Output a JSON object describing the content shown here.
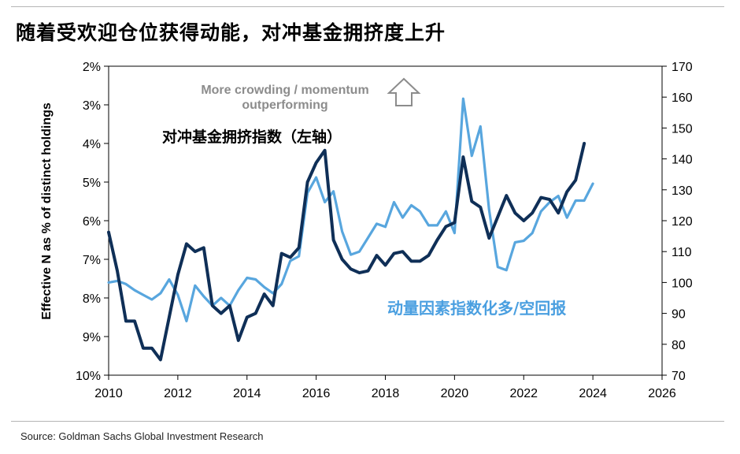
{
  "title": "随着受欢迎仓位获得动能，对冲基金拥挤度上升",
  "source": "Source: Goldman Sachs Global Investment Research",
  "colors": {
    "dark_series": "#0f2f57",
    "light_series": "#58a6de",
    "arrow": "#8c8c8c"
  },
  "chart_data": {
    "type": "line",
    "xlim": [
      2010,
      2026
    ],
    "x_ticks": [
      "2010",
      "2012",
      "2014",
      "2016",
      "2018",
      "2020",
      "2022",
      "2024",
      "2026"
    ],
    "y_left": {
      "label": "Effective N as % of distinct holdings",
      "ylim": [
        2,
        10
      ],
      "inverted": true,
      "ticks": [
        "2%",
        "3%",
        "4%",
        "5%",
        "6%",
        "7%",
        "8%",
        "9%",
        "10%"
      ]
    },
    "y_right": {
      "ylim": [
        70,
        170
      ],
      "ticks": [
        "70",
        "80",
        "90",
        "100",
        "110",
        "120",
        "130",
        "140",
        "150",
        "160",
        "170"
      ]
    },
    "annotations": {
      "top_note_line1": "More crowding / momentum",
      "top_note_line2": "outperforming",
      "left_series_label": "对冲基金拥挤指数（左轴）",
      "right_series_label": "动量因素指数化多/空回报"
    },
    "series": [
      {
        "axis": "left",
        "color": "#0f2f57",
        "points": [
          [
            2010.0,
            6.3
          ],
          [
            2010.25,
            7.3
          ],
          [
            2010.5,
            8.6
          ],
          [
            2010.75,
            8.6
          ],
          [
            2011.0,
            9.3
          ],
          [
            2011.25,
            9.3
          ],
          [
            2011.5,
            9.6
          ],
          [
            2011.75,
            8.5
          ],
          [
            2012.0,
            7.4
          ],
          [
            2012.25,
            6.6
          ],
          [
            2012.5,
            6.8
          ],
          [
            2012.75,
            6.7
          ],
          [
            2013.0,
            8.2
          ],
          [
            2013.25,
            8.4
          ],
          [
            2013.5,
            8.2
          ],
          [
            2013.75,
            9.1
          ],
          [
            2014.0,
            8.5
          ],
          [
            2014.25,
            8.4
          ],
          [
            2014.5,
            7.9
          ],
          [
            2014.75,
            8.2
          ],
          [
            2015.0,
            6.85
          ],
          [
            2015.25,
            6.95
          ],
          [
            2015.5,
            6.7
          ],
          [
            2015.75,
            5.0
          ],
          [
            2016.0,
            4.5
          ],
          [
            2016.25,
            4.18
          ],
          [
            2016.5,
            6.5
          ],
          [
            2016.75,
            7.0
          ],
          [
            2017.0,
            7.25
          ],
          [
            2017.25,
            7.35
          ],
          [
            2017.5,
            7.3
          ],
          [
            2017.75,
            6.9
          ],
          [
            2018.0,
            7.15
          ],
          [
            2018.25,
            6.85
          ],
          [
            2018.5,
            6.8
          ],
          [
            2018.75,
            7.05
          ],
          [
            2019.0,
            7.05
          ],
          [
            2019.25,
            6.9
          ],
          [
            2019.5,
            6.5
          ],
          [
            2019.75,
            6.15
          ],
          [
            2020.0,
            6.05
          ],
          [
            2020.25,
            4.35
          ],
          [
            2020.5,
            5.5
          ],
          [
            2020.75,
            5.65
          ],
          [
            2021.0,
            6.45
          ],
          [
            2021.25,
            5.9
          ],
          [
            2021.5,
            5.35
          ],
          [
            2021.75,
            5.8
          ],
          [
            2022.0,
            6.0
          ],
          [
            2022.25,
            5.8
          ],
          [
            2022.5,
            5.4
          ],
          [
            2022.75,
            5.45
          ],
          [
            2023.0,
            5.8
          ],
          [
            2023.25,
            5.25
          ],
          [
            2023.5,
            4.95
          ],
          [
            2023.75,
            4.0
          ]
        ]
      },
      {
        "axis": "right",
        "color": "#58a6de",
        "points": [
          [
            2010.0,
            100
          ],
          [
            2010.25,
            100.5
          ],
          [
            2010.5,
            99.5
          ],
          [
            2010.75,
            97.5
          ],
          [
            2011.0,
            96
          ],
          [
            2011.25,
            94.5
          ],
          [
            2011.5,
            96.5
          ],
          [
            2011.75,
            101
          ],
          [
            2012.0,
            96
          ],
          [
            2012.25,
            87.5
          ],
          [
            2012.5,
            99
          ],
          [
            2012.75,
            95.5
          ],
          [
            2013.0,
            92.5
          ],
          [
            2013.25,
            95
          ],
          [
            2013.5,
            92.5
          ],
          [
            2013.75,
            97.5
          ],
          [
            2014.0,
            101.5
          ],
          [
            2014.25,
            101
          ],
          [
            2014.5,
            98.5
          ],
          [
            2014.75,
            96.5
          ],
          [
            2015.0,
            99.5
          ],
          [
            2015.25,
            107
          ],
          [
            2015.5,
            108.5
          ],
          [
            2015.75,
            129
          ],
          [
            2016.0,
            134
          ],
          [
            2016.25,
            126
          ],
          [
            2016.5,
            129.5
          ],
          [
            2016.75,
            116.5
          ],
          [
            2017.0,
            109
          ],
          [
            2017.25,
            110
          ],
          [
            2017.5,
            114.5
          ],
          [
            2017.75,
            119
          ],
          [
            2018.0,
            118
          ],
          [
            2018.25,
            126
          ],
          [
            2018.5,
            121
          ],
          [
            2018.75,
            125
          ],
          [
            2019.0,
            123
          ],
          [
            2019.25,
            118.5
          ],
          [
            2019.5,
            118.5
          ],
          [
            2019.75,
            123
          ],
          [
            2020.0,
            116
          ],
          [
            2020.25,
            159.5
          ],
          [
            2020.5,
            141
          ],
          [
            2020.75,
            150.5
          ],
          [
            2021.0,
            123.5
          ],
          [
            2021.25,
            105
          ],
          [
            2021.5,
            104
          ],
          [
            2021.75,
            113
          ],
          [
            2022.0,
            113.5
          ],
          [
            2022.25,
            116
          ],
          [
            2022.5,
            123
          ],
          [
            2022.75,
            126
          ],
          [
            2023.0,
            128
          ],
          [
            2023.25,
            121
          ],
          [
            2023.5,
            126.5
          ],
          [
            2023.75,
            126.5
          ],
          [
            2024.0,
            132
          ]
        ]
      }
    ]
  }
}
